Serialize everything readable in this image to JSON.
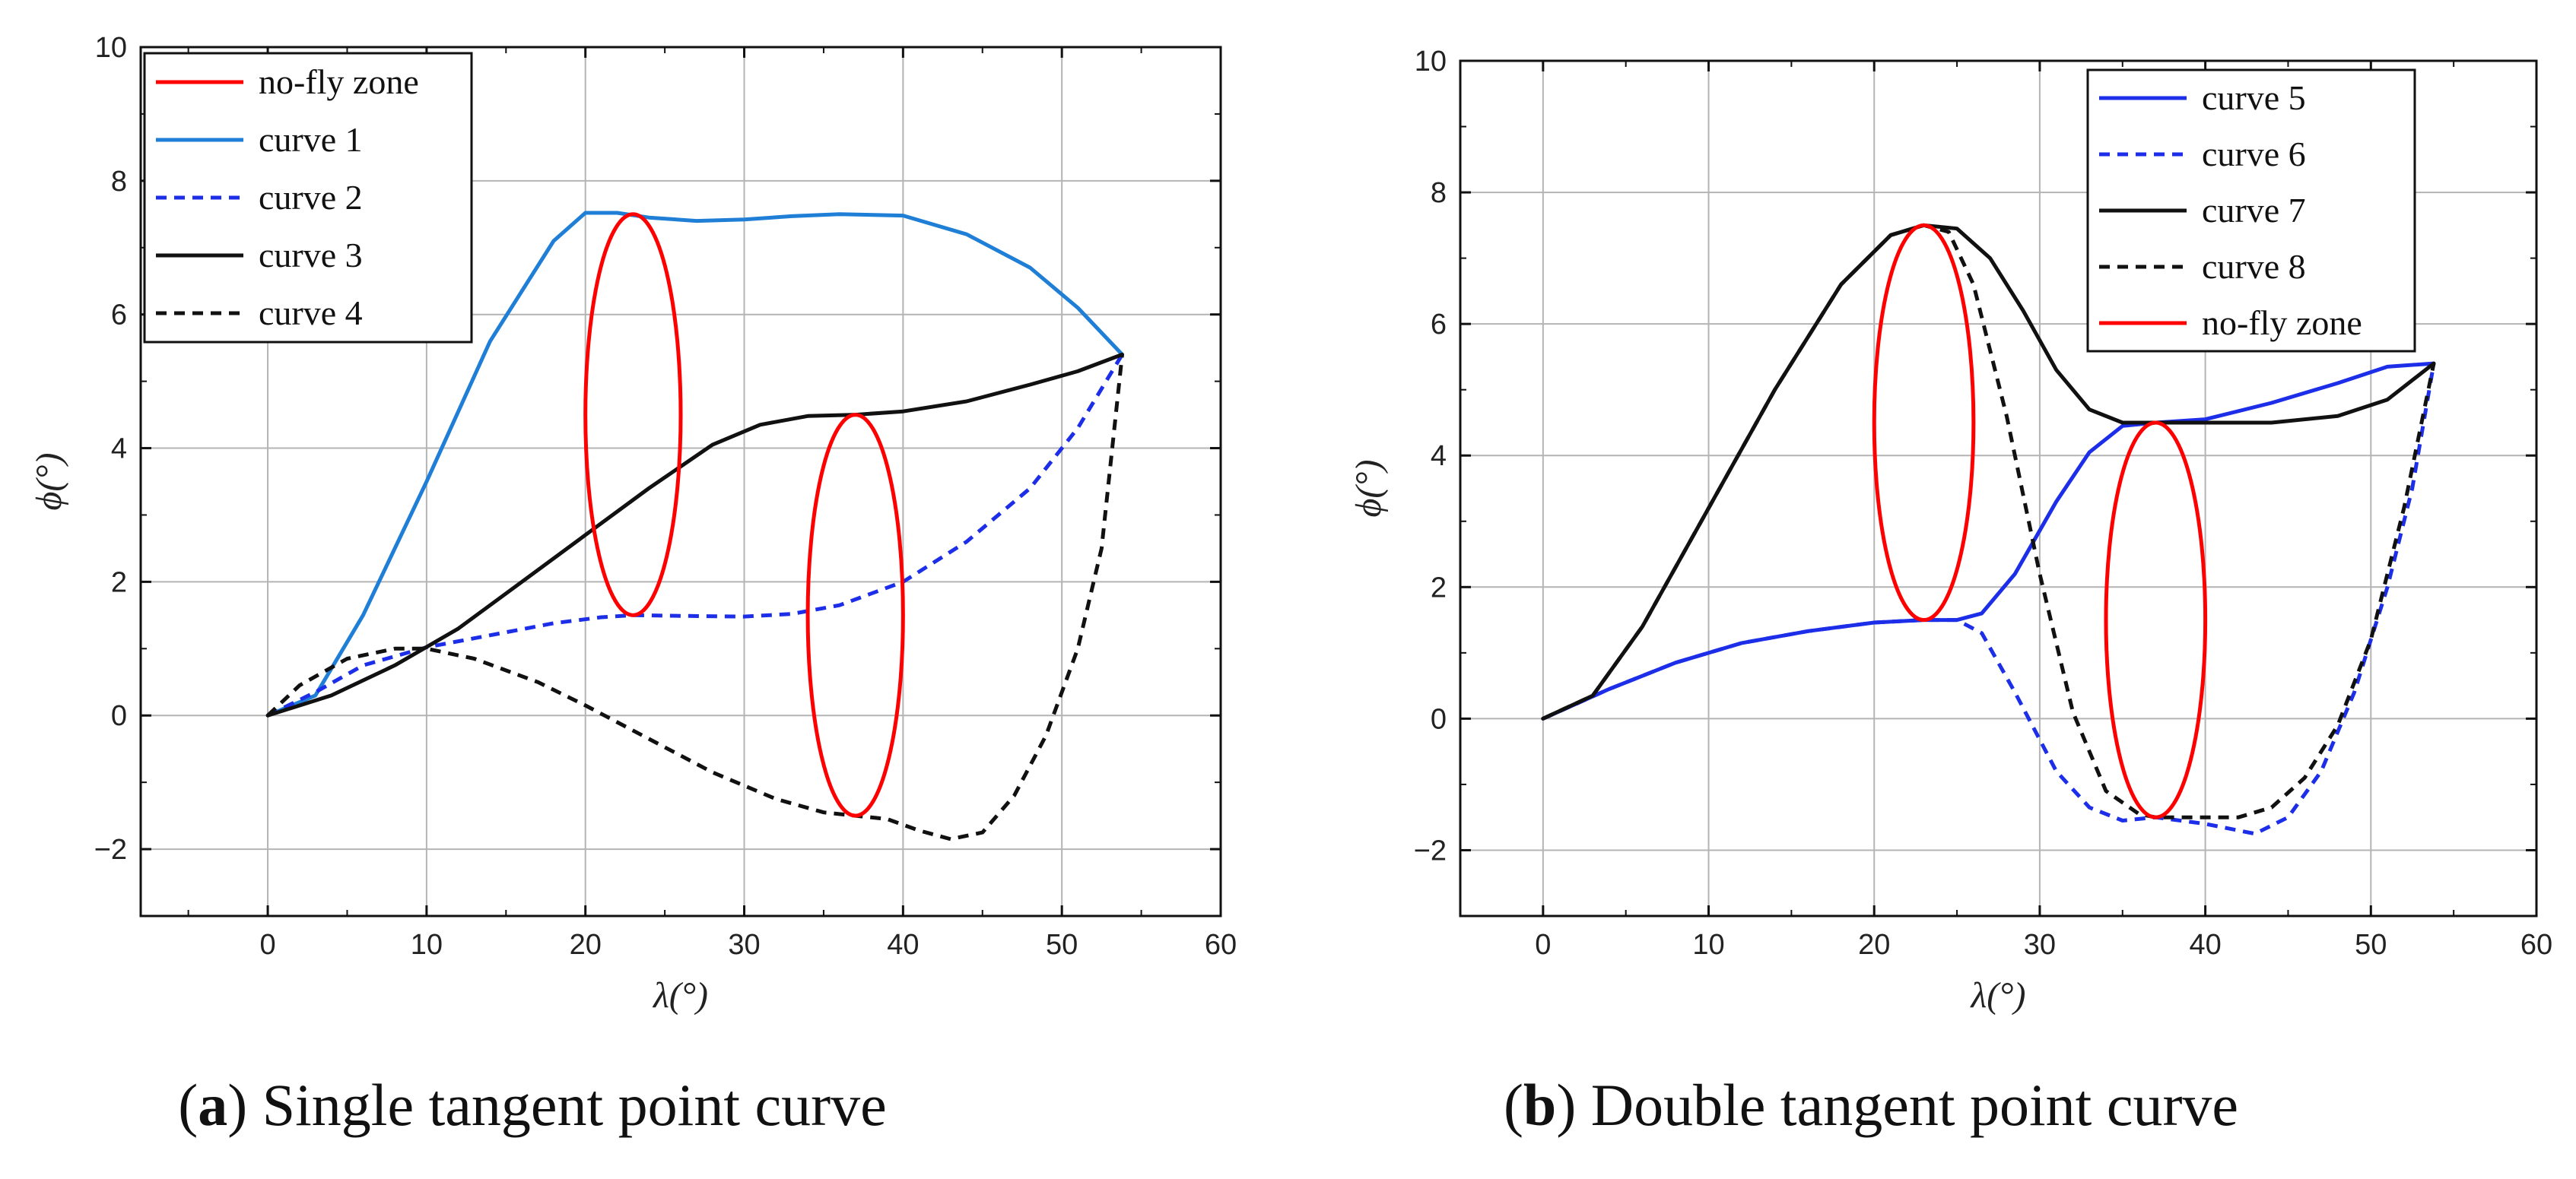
{
  "chart_data": [
    {
      "type": "line",
      "caption_label": "a",
      "caption_text": "Single tangent point curve",
      "xlabel": "λ(°)",
      "ylabel": "ϕ(°)",
      "xlim": [
        -8,
        60
      ],
      "ylim": [
        -3,
        10
      ],
      "xticks": [
        0,
        10,
        20,
        30,
        40,
        50,
        60
      ],
      "yticks": [
        -2,
        0,
        2,
        4,
        6,
        8,
        10
      ],
      "xticks_minor": [
        -5,
        5,
        15,
        25,
        35,
        45,
        55
      ],
      "yticks_minor": [
        -1,
        1,
        3,
        5,
        7,
        9
      ],
      "grid": true,
      "legend_position": "top-left",
      "zones": [
        {
          "center": [
            23,
            4.5
          ],
          "rx": 3,
          "ry": 3,
          "color": "#ff0000"
        },
        {
          "center": [
            37,
            1.5
          ],
          "rx": 3,
          "ry": 3,
          "color": "#ff0000"
        }
      ],
      "legend": [
        {
          "label": "no-fly zone",
          "color": "#ff0000",
          "dash": "solid"
        },
        {
          "label": "curve 1",
          "color": "#1f7ed6",
          "dash": "solid"
        },
        {
          "label": "curve 2",
          "color": "#1c2ee8",
          "dash": "dashed"
        },
        {
          "label": "curve 3",
          "color": "#111111",
          "dash": "solid"
        },
        {
          "label": "curve 4",
          "color": "#111111",
          "dash": "dashed"
        }
      ],
      "series": [
        {
          "name": "curve 1",
          "color": "#1f7ed6",
          "dash": "solid",
          "points": [
            [
              0,
              0
            ],
            [
              3,
              0.3
            ],
            [
              6,
              1.5
            ],
            [
              10,
              3.5
            ],
            [
              14,
              5.6
            ],
            [
              18,
              7.1
            ],
            [
              20,
              7.52
            ],
            [
              22,
              7.52
            ],
            [
              24,
              7.45
            ],
            [
              27,
              7.4
            ],
            [
              30,
              7.42
            ],
            [
              33,
              7.47
            ],
            [
              36,
              7.5
            ],
            [
              40,
              7.48
            ],
            [
              44,
              7.2
            ],
            [
              48,
              6.7
            ],
            [
              51,
              6.1
            ],
            [
              53.8,
              5.4
            ]
          ]
        },
        {
          "name": "curve 2",
          "color": "#1c2ee8",
          "dash": "dashed",
          "points": [
            [
              0,
              0
            ],
            [
              3,
              0.35
            ],
            [
              6,
              0.75
            ],
            [
              10,
              1.02
            ],
            [
              14,
              1.2
            ],
            [
              18,
              1.38
            ],
            [
              21,
              1.47
            ],
            [
              23,
              1.5
            ],
            [
              26,
              1.49
            ],
            [
              30,
              1.48
            ],
            [
              33,
              1.52
            ],
            [
              36,
              1.65
            ],
            [
              40,
              2.0
            ],
            [
              44,
              2.6
            ],
            [
              48,
              3.4
            ],
            [
              51,
              4.3
            ],
            [
              53.8,
              5.4
            ]
          ]
        },
        {
          "name": "curve 3",
          "color": "#111111",
          "dash": "solid",
          "points": [
            [
              0,
              0
            ],
            [
              4,
              0.3
            ],
            [
              8,
              0.75
            ],
            [
              12,
              1.3
            ],
            [
              16,
              2.0
            ],
            [
              20,
              2.7
            ],
            [
              24,
              3.4
            ],
            [
              28,
              4.05
            ],
            [
              31,
              4.35
            ],
            [
              34,
              4.48
            ],
            [
              37,
              4.5
            ],
            [
              40,
              4.55
            ],
            [
              44,
              4.7
            ],
            [
              48,
              4.95
            ],
            [
              51,
              5.15
            ],
            [
              53.8,
              5.4
            ]
          ]
        },
        {
          "name": "curve 4",
          "color": "#111111",
          "dash": "dashed",
          "points": [
            [
              0,
              0
            ],
            [
              2,
              0.45
            ],
            [
              5,
              0.85
            ],
            [
              8,
              1.0
            ],
            [
              10,
              1.0
            ],
            [
              13,
              0.85
            ],
            [
              17,
              0.5
            ],
            [
              20,
              0.15
            ],
            [
              24,
              -0.35
            ],
            [
              28,
              -0.85
            ],
            [
              32,
              -1.25
            ],
            [
              35,
              -1.45
            ],
            [
              37,
              -1.5
            ],
            [
              39,
              -1.55
            ],
            [
              41,
              -1.72
            ],
            [
              43,
              -1.85
            ],
            [
              45,
              -1.75
            ],
            [
              47,
              -1.2
            ],
            [
              49,
              -0.3
            ],
            [
              51,
              1.0
            ],
            [
              52.5,
              2.5
            ],
            [
              53.8,
              5.4
            ]
          ]
        }
      ]
    },
    {
      "type": "line",
      "caption_label": "b",
      "caption_text": "Double tangent point curve",
      "xlabel": "λ(°)",
      "ylabel": "ϕ(°)",
      "xlim": [
        -5,
        60
      ],
      "ylim": [
        -3,
        10
      ],
      "xticks": [
        0,
        10,
        20,
        30,
        40,
        50,
        60
      ],
      "yticks": [
        -2,
        0,
        2,
        4,
        6,
        8,
        10
      ],
      "xticks_minor": [
        -5,
        5,
        15,
        25,
        35,
        45,
        55
      ],
      "yticks_minor": [
        -1,
        1,
        3,
        5,
        7,
        9
      ],
      "grid": true,
      "legend_position": "top-right",
      "zones": [
        {
          "center": [
            23,
            4.5
          ],
          "rx": 3,
          "ry": 3,
          "color": "#ff0000"
        },
        {
          "center": [
            37,
            1.5
          ],
          "rx": 3,
          "ry": 3,
          "color": "#ff0000"
        }
      ],
      "legend": [
        {
          "label": "curve 5",
          "color": "#1c2ee8",
          "dash": "solid"
        },
        {
          "label": "curve 6",
          "color": "#1c2ee8",
          "dash": "dashed"
        },
        {
          "label": "curve 7",
          "color": "#111111",
          "dash": "solid"
        },
        {
          "label": "curve 8",
          "color": "#111111",
          "dash": "dashed"
        },
        {
          "label": "no-fly zone",
          "color": "#ff0000",
          "dash": "solid"
        }
      ],
      "series": [
        {
          "name": "curve 5",
          "color": "#1c2ee8",
          "dash": "solid",
          "points": [
            [
              0,
              0
            ],
            [
              4,
              0.45
            ],
            [
              8,
              0.85
            ],
            [
              12,
              1.15
            ],
            [
              16,
              1.33
            ],
            [
              20,
              1.46
            ],
            [
              23,
              1.5
            ],
            [
              25,
              1.5
            ],
            [
              26.5,
              1.6
            ],
            [
              28.5,
              2.2
            ],
            [
              31,
              3.3
            ],
            [
              33,
              4.05
            ],
            [
              35,
              4.45
            ],
            [
              37,
              4.5
            ],
            [
              40,
              4.55
            ],
            [
              44,
              4.8
            ],
            [
              48,
              5.1
            ],
            [
              51,
              5.35
            ],
            [
              53.8,
              5.4
            ]
          ]
        },
        {
          "name": "curve 6",
          "color": "#1c2ee8",
          "dash": "dashed",
          "points": [
            [
              0,
              0
            ],
            [
              4,
              0.45
            ],
            [
              8,
              0.85
            ],
            [
              12,
              1.15
            ],
            [
              16,
              1.33
            ],
            [
              20,
              1.46
            ],
            [
              23,
              1.5
            ],
            [
              25,
              1.5
            ],
            [
              26.5,
              1.3
            ],
            [
              28.5,
              0.4
            ],
            [
              31,
              -0.8
            ],
            [
              33,
              -1.35
            ],
            [
              35,
              -1.55
            ],
            [
              37,
              -1.5
            ],
            [
              40,
              -1.6
            ],
            [
              43,
              -1.75
            ],
            [
              45,
              -1.5
            ],
            [
              47,
              -0.8
            ],
            [
              49,
              0.4
            ],
            [
              51,
              2.0
            ],
            [
              52.5,
              3.5
            ],
            [
              53.8,
              5.4
            ]
          ]
        },
        {
          "name": "curve 7",
          "color": "#111111",
          "dash": "solid",
          "points": [
            [
              0,
              0
            ],
            [
              3,
              0.35
            ],
            [
              6,
              1.4
            ],
            [
              10,
              3.2
            ],
            [
              14,
              5.0
            ],
            [
              18,
              6.6
            ],
            [
              21,
              7.35
            ],
            [
              23,
              7.5
            ],
            [
              25,
              7.45
            ],
            [
              27,
              7.0
            ],
            [
              29,
              6.2
            ],
            [
              31,
              5.3
            ],
            [
              33,
              4.7
            ],
            [
              35,
              4.5
            ],
            [
              37,
              4.5
            ],
            [
              40,
              4.5
            ],
            [
              44,
              4.5
            ],
            [
              48,
              4.6
            ],
            [
              51,
              4.85
            ],
            [
              53.8,
              5.4
            ]
          ]
        },
        {
          "name": "curve 8",
          "color": "#111111",
          "dash": "dashed",
          "points": [
            [
              0,
              0
            ],
            [
              3,
              0.35
            ],
            [
              6,
              1.4
            ],
            [
              10,
              3.2
            ],
            [
              14,
              5.0
            ],
            [
              18,
              6.6
            ],
            [
              21,
              7.35
            ],
            [
              23,
              7.5
            ],
            [
              24.5,
              7.4
            ],
            [
              26,
              6.6
            ],
            [
              28,
              4.6
            ],
            [
              30,
              2.2
            ],
            [
              32,
              0.1
            ],
            [
              34,
              -1.1
            ],
            [
              36,
              -1.45
            ],
            [
              37,
              -1.5
            ],
            [
              40,
              -1.5
            ],
            [
              42,
              -1.5
            ],
            [
              44,
              -1.35
            ],
            [
              46,
              -0.9
            ],
            [
              48,
              -0.1
            ],
            [
              50,
              1.2
            ],
            [
              52,
              3.2
            ],
            [
              53.8,
              5.4
            ]
          ]
        }
      ]
    }
  ]
}
